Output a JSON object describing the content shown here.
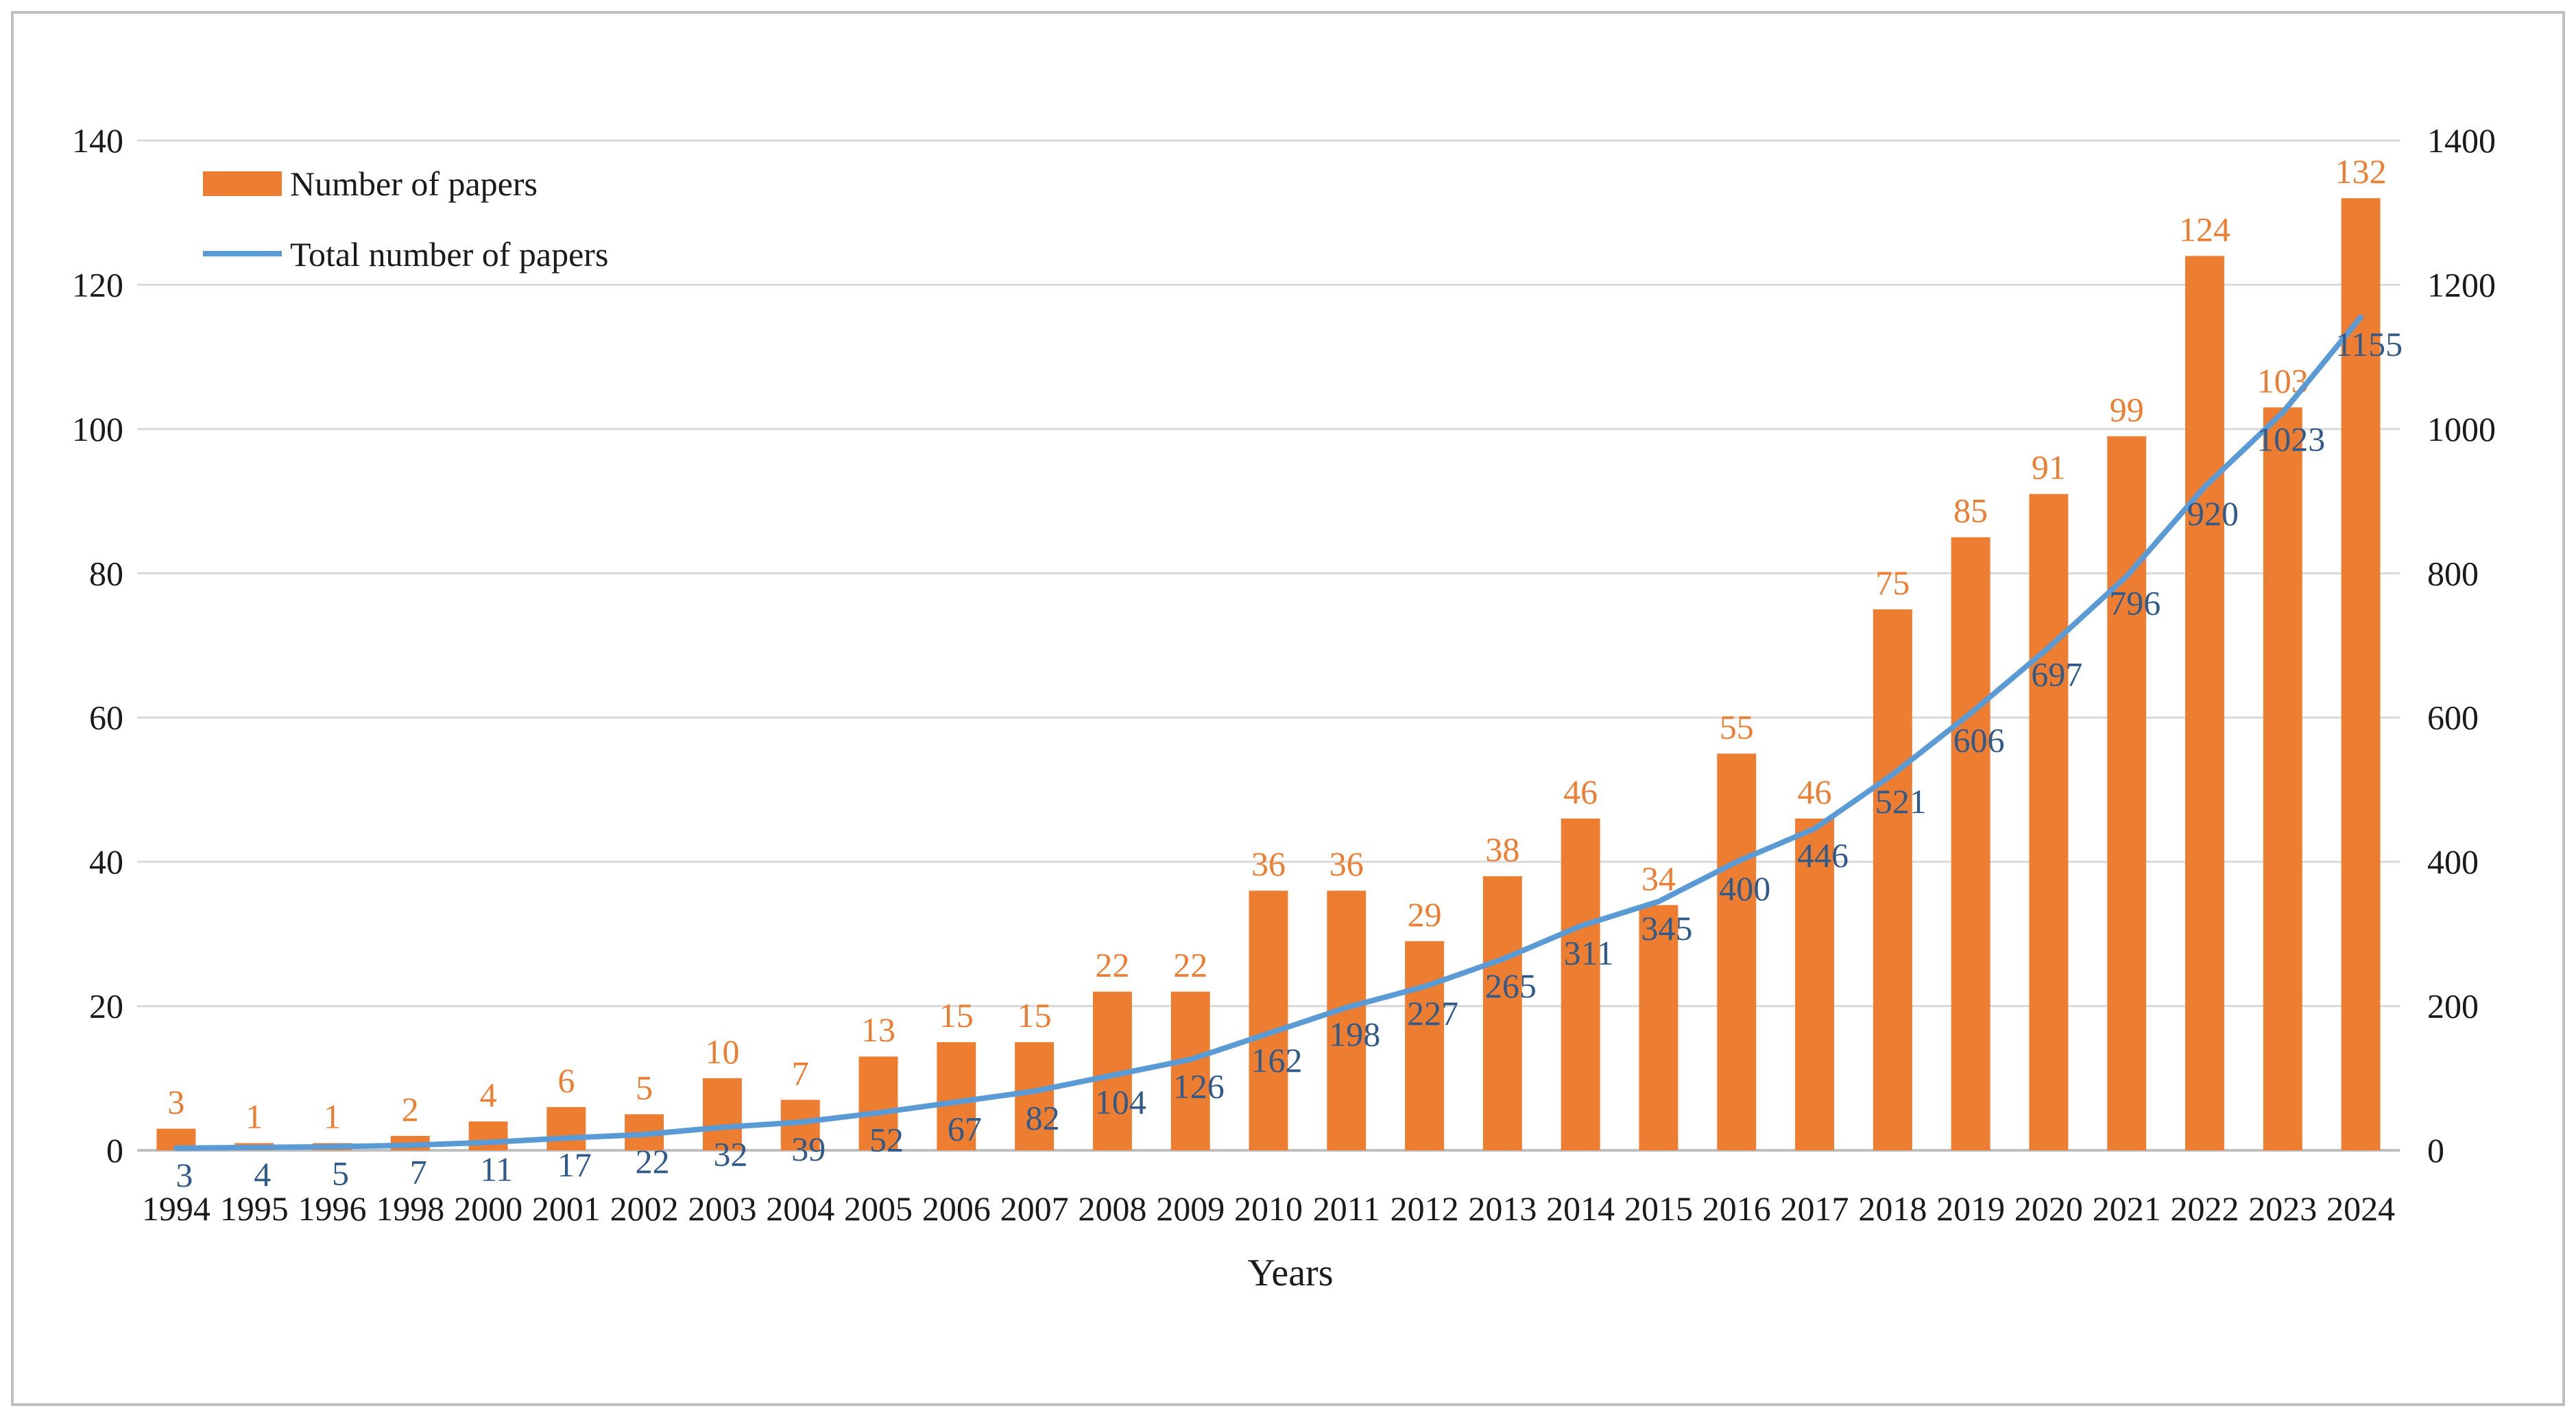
{
  "chart_data": {
    "type": "bar",
    "xlabel": "Years",
    "categories": [
      "1994",
      "1995",
      "1996",
      "1998",
      "2000",
      "2001",
      "2002",
      "2003",
      "2004",
      "2005",
      "2006",
      "2007",
      "2008",
      "2009",
      "2010",
      "2011",
      "2012",
      "2013",
      "2014",
      "2015",
      "2016",
      "2017",
      "2018",
      "2019",
      "2020",
      "2021",
      "2022",
      "2023",
      "2024"
    ],
    "series": [
      {
        "name": "Number of papers",
        "kind": "bar",
        "axis": "left",
        "color": "#ED7D31",
        "values": [
          3,
          1,
          1,
          2,
          4,
          6,
          5,
          10,
          7,
          13,
          15,
          15,
          22,
          22,
          36,
          36,
          29,
          38,
          46,
          34,
          55,
          46,
          75,
          85,
          91,
          99,
          124,
          103,
          132
        ]
      },
      {
        "name": "Total number of papers",
        "kind": "line",
        "axis": "right",
        "color": "#5B9BD5",
        "label_color": "#2F5A8A",
        "values": [
          3,
          4,
          5,
          7,
          11,
          17,
          22,
          32,
          39,
          52,
          67,
          82,
          104,
          126,
          162,
          198,
          227,
          265,
          311,
          345,
          400,
          446,
          521,
          606,
          697,
          796,
          920,
          1023,
          1155
        ]
      }
    ],
    "y_left": {
      "ylim": [
        0,
        140
      ],
      "ticks": [
        "0",
        "20",
        "40",
        "60",
        "80",
        "100",
        "120",
        "140"
      ]
    },
    "y_right": {
      "ylim": [
        0,
        1400
      ],
      "ticks": [
        "0",
        "200",
        "400",
        "600",
        "800",
        "1000",
        "1200",
        "1400"
      ]
    },
    "grid": true,
    "legend_position": "top-left"
  }
}
